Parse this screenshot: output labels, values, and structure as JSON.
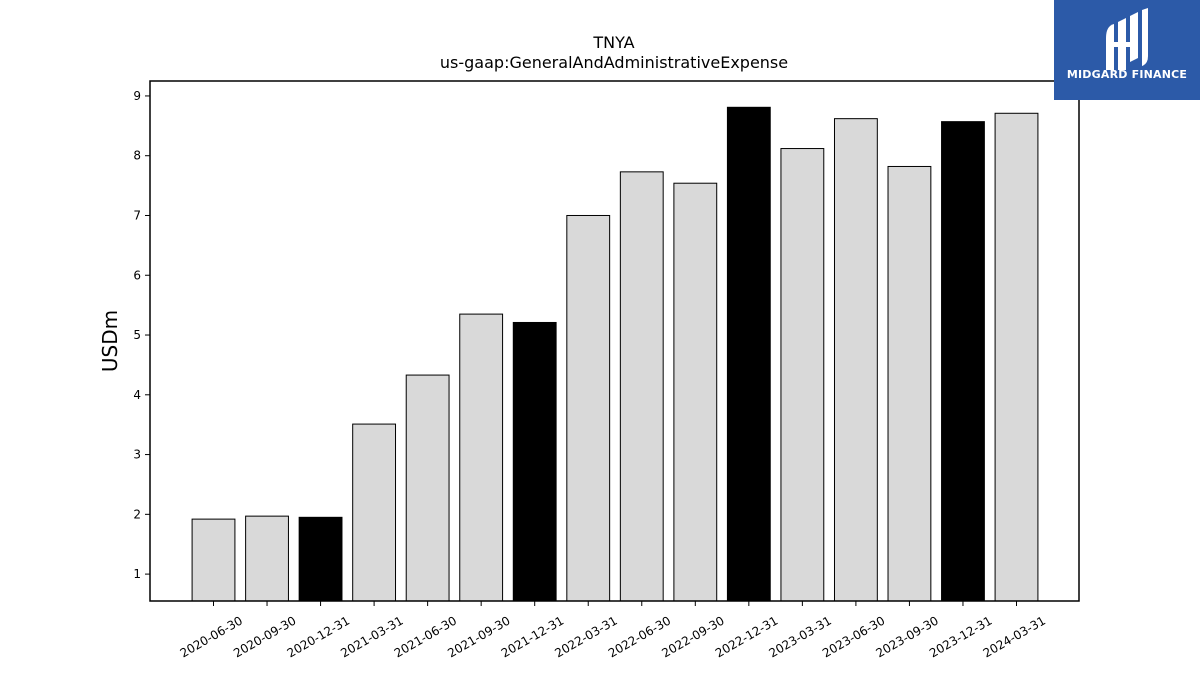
{
  "chart_data": {
    "type": "bar",
    "title": "TNYA",
    "subtitle": "us-gaap:GeneralAndAdministrativeExpense",
    "xlabel": "",
    "ylabel": "USDm",
    "ylim": [
      0.55,
      9.25
    ],
    "yticks": [
      1,
      2,
      3,
      4,
      5,
      6,
      7,
      8,
      9
    ],
    "grid": false,
    "categories": [
      "2020-06-30",
      "2020-09-30",
      "2020-12-31",
      "2021-03-31",
      "2021-06-30",
      "2021-09-30",
      "2021-12-31",
      "2022-03-31",
      "2022-06-30",
      "2022-09-30",
      "2022-12-31",
      "2023-03-31",
      "2023-06-30",
      "2023-09-30",
      "2023-12-31",
      "2024-03-31"
    ],
    "values": [
      1.92,
      1.97,
      1.95,
      3.51,
      4.33,
      5.35,
      5.21,
      7.0,
      7.73,
      7.54,
      8.81,
      8.12,
      8.62,
      7.82,
      8.57,
      8.71
    ],
    "colors": [
      "#d9d9d9",
      "#d9d9d9",
      "#000000",
      "#d9d9d9",
      "#d9d9d9",
      "#d9d9d9",
      "#000000",
      "#d9d9d9",
      "#d9d9d9",
      "#d9d9d9",
      "#000000",
      "#d9d9d9",
      "#d9d9d9",
      "#d9d9d9",
      "#000000",
      "#d9d9d9"
    ]
  },
  "logo": {
    "text": "MIDGARD FINANCE",
    "background": "#2c5aa8"
  }
}
